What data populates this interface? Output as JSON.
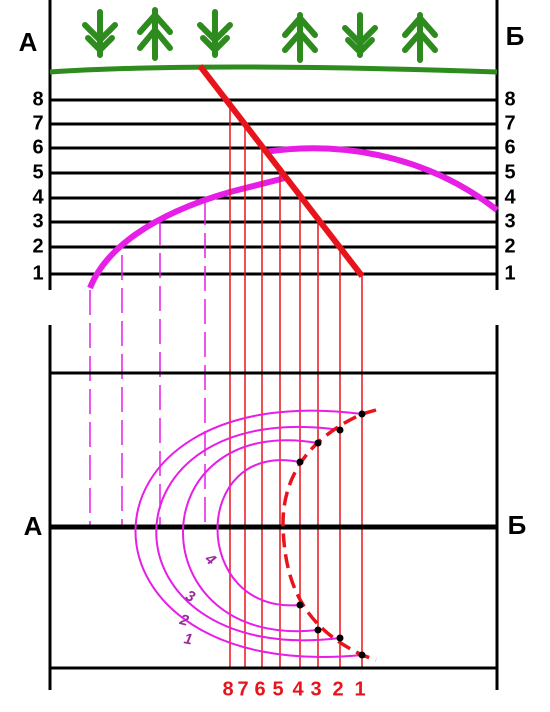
{
  "section": {
    "left_label": "А",
    "right_label": "Б",
    "levels_left": [
      "8",
      "7",
      "6",
      "5",
      "4",
      "3",
      "2",
      "1"
    ],
    "levels_right": [
      "8",
      "7",
      "6",
      "5",
      "4",
      "3",
      "2",
      "1"
    ]
  },
  "plan": {
    "left_label": "А",
    "right_label": "Б",
    "line_numbers": [
      "8",
      "7",
      "6",
      "5",
      "4",
      "3",
      "2",
      "1"
    ],
    "contour_labels": [
      "4",
      "3",
      "2",
      "1"
    ]
  }
}
